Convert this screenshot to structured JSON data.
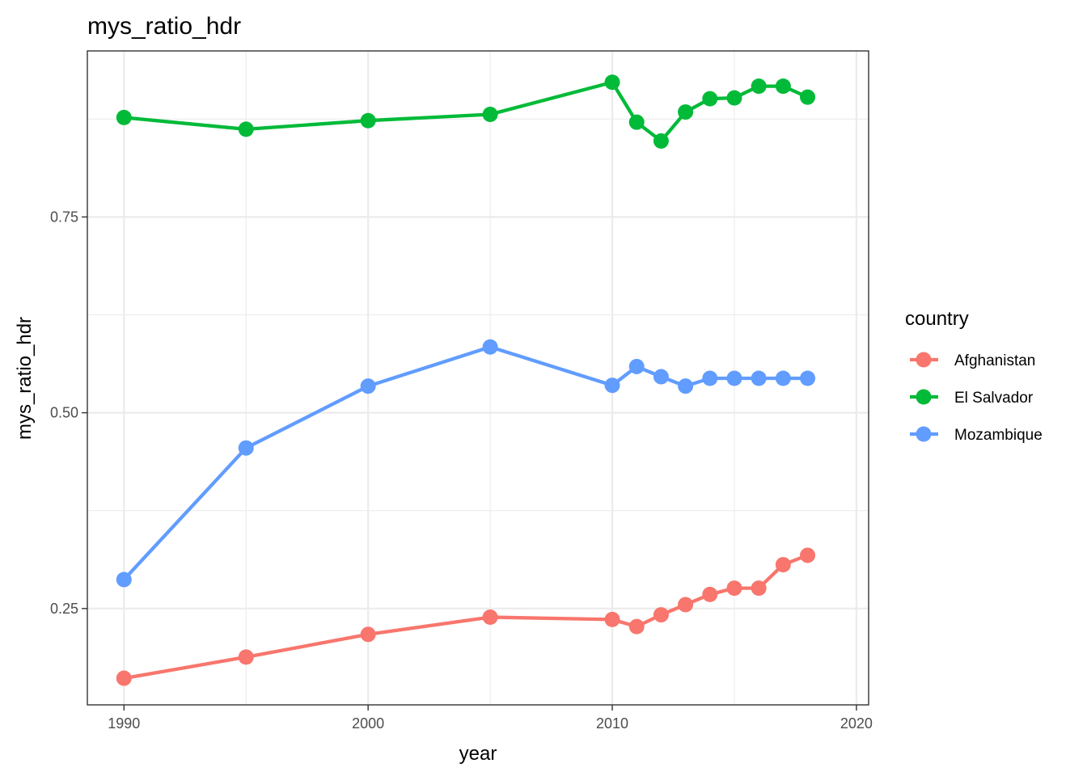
{
  "chart_data": {
    "type": "line",
    "title": "mys_ratio_hdr",
    "xlabel": "year",
    "ylabel": "mys_ratio_hdr",
    "xlim": [
      1988.5,
      2020.5
    ],
    "ylim": [
      0.127,
      0.962
    ],
    "x_ticks": [
      1990,
      2000,
      2010,
      2020
    ],
    "x_tick_labels": [
      "1990",
      "2000",
      "2010",
      "2020"
    ],
    "y_ticks": [
      0.25,
      0.5,
      0.75
    ],
    "y_tick_labels": [
      "0.25",
      "0.50",
      "0.75"
    ],
    "x_minor_ticks": [
      1995,
      2005,
      2015
    ],
    "y_minor_ticks": [
      0.375,
      0.625,
      0.875
    ],
    "grid": true,
    "legend": {
      "title": "country",
      "position": "right"
    },
    "series": [
      {
        "name": "Afghanistan",
        "color": "#F8766D",
        "x": [
          1990,
          1995,
          2000,
          2005,
          2010,
          2011,
          2012,
          2013,
          2014,
          2015,
          2016,
          2017,
          2018
        ],
        "y": [
          0.161,
          0.188,
          0.217,
          0.239,
          0.236,
          0.227,
          0.242,
          0.255,
          0.268,
          0.276,
          0.276,
          0.306,
          0.318
        ]
      },
      {
        "name": "El Salvador",
        "color": "#00BA38",
        "x": [
          1990,
          1995,
          2000,
          2005,
          2010,
          2011,
          2012,
          2013,
          2014,
          2015,
          2016,
          2017,
          2018
        ],
        "y": [
          0.877,
          0.862,
          0.873,
          0.881,
          0.922,
          0.871,
          0.847,
          0.884,
          0.901,
          0.902,
          0.917,
          0.917,
          0.903
        ]
      },
      {
        "name": "Mozambique",
        "color": "#619CFF",
        "x": [
          1990,
          1995,
          2000,
          2005,
          2010,
          2011,
          2012,
          2013,
          2014,
          2015,
          2016,
          2017,
          2018
        ],
        "y": [
          0.287,
          0.455,
          0.534,
          0.584,
          0.535,
          0.559,
          0.546,
          0.534,
          0.544,
          0.544,
          0.544,
          0.544,
          0.544
        ]
      }
    ]
  }
}
